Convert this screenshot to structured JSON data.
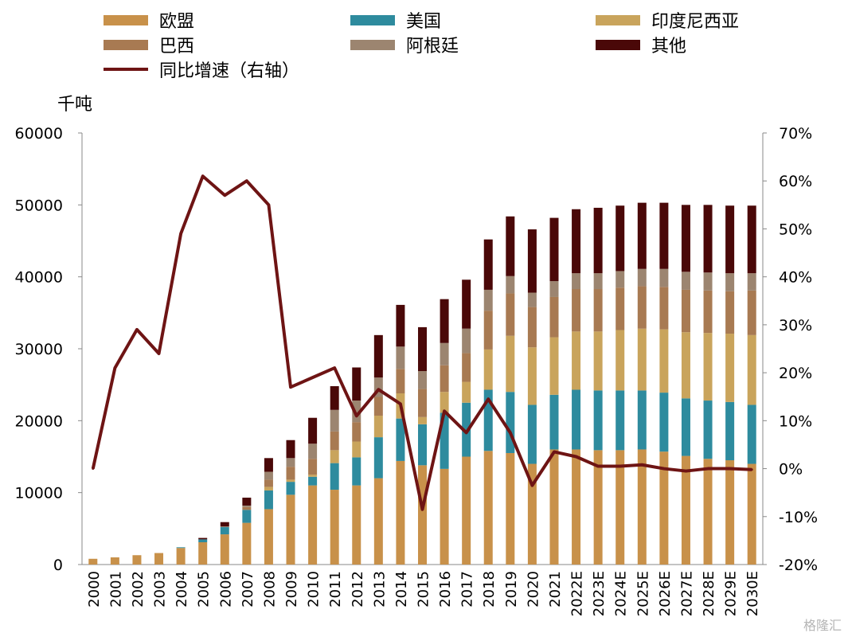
{
  "colors": {
    "eu": "#C8914A",
    "us": "#2E8B9E",
    "india": "#C9A45C",
    "brazil": "#A87A52",
    "argentina": "#9C8570",
    "other": "#4A0808",
    "line": "#6E1414"
  },
  "unit_label": "千吨",
  "watermark": "格隆汇",
  "chart_data": {
    "type": "bar",
    "stacked": true,
    "categories": [
      "2000",
      "2001",
      "2002",
      "2003",
      "2004",
      "2005",
      "2006",
      "2007",
      "2008",
      "2009",
      "2010",
      "2011",
      "2012",
      "2013",
      "2014",
      "2015",
      "2016",
      "2017",
      "2018",
      "2019",
      "2020",
      "2021",
      "2022E",
      "2023E",
      "2024E",
      "2025E",
      "2026E",
      "2027E",
      "2028E",
      "2029E",
      "2030E"
    ],
    "y_left": {
      "ylim": [
        0,
        60000
      ],
      "ticks": [
        "0",
        "10000",
        "20000",
        "30000",
        "40000",
        "50000",
        "60000"
      ]
    },
    "y_right": {
      "ylim": [
        -20,
        70
      ],
      "ticks": [
        "-20%",
        "-10%",
        "0%",
        "10%",
        "20%",
        "30%",
        "40%",
        "50%",
        "60%",
        "70%"
      ]
    },
    "series": [
      {
        "name": "欧盟",
        "color_key": "eu",
        "values": [
          800,
          1000,
          1300,
          1600,
          2300,
          3100,
          4200,
          5800,
          7700,
          9700,
          11000,
          10400,
          11000,
          12000,
          14400,
          13800,
          13300,
          15000,
          15800,
          15500,
          14000,
          16000,
          16000,
          15900,
          15900,
          16000,
          15700,
          15100,
          14700,
          14500,
          14000
        ]
      },
      {
        "name": "美国",
        "color_key": "us",
        "values": [
          0,
          0,
          0,
          0,
          100,
          400,
          1000,
          1800,
          2600,
          1800,
          1200,
          3700,
          3900,
          5700,
          5900,
          5700,
          7800,
          7500,
          8500,
          8500,
          8200,
          7600,
          8300,
          8300,
          8300,
          8200,
          8200,
          8000,
          8100,
          8100,
          8200
        ]
      },
      {
        "name": "印度尼西亚",
        "color_key": "india",
        "values": [
          0,
          0,
          0,
          0,
          0,
          0,
          0,
          0,
          500,
          300,
          300,
          1800,
          2200,
          3000,
          3500,
          1000,
          2900,
          2900,
          5600,
          7800,
          8000,
          8000,
          8100,
          8200,
          8400,
          8600,
          8800,
          9200,
          9400,
          9500,
          9700
        ]
      },
      {
        "name": "巴西",
        "color_key": "brazil",
        "values": [
          0,
          0,
          0,
          0,
          0,
          0,
          0,
          400,
          1000,
          1800,
          2200,
          2600,
          2700,
          2600,
          3400,
          3900,
          3700,
          4000,
          5400,
          5900,
          5600,
          5600,
          5900,
          5900,
          5900,
          5900,
          5900,
          5900,
          5900,
          5900,
          6200
        ]
      },
      {
        "name": "阿根廷",
        "color_key": "argentina",
        "values": [
          0,
          0,
          0,
          0,
          0,
          0,
          100,
          200,
          1100,
          1200,
          2100,
          3000,
          3000,
          2700,
          3100,
          2500,
          3100,
          3400,
          2900,
          2400,
          2000,
          2200,
          2200,
          2200,
          2300,
          2400,
          2500,
          2500,
          2500,
          2500,
          2400
        ]
      },
      {
        "name": "其他",
        "color_key": "other",
        "values": [
          0,
          0,
          0,
          0,
          0,
          200,
          600,
          1100,
          1900,
          2500,
          3600,
          3300,
          4600,
          5900,
          5800,
          6100,
          6100,
          6800,
          7000,
          8300,
          8800,
          8800,
          8900,
          9100,
          9100,
          9200,
          9200,
          9300,
          9400,
          9400,
          9400
        ]
      }
    ],
    "line": {
      "name": "同比增速（右轴）",
      "color_key": "line",
      "unit": "%",
      "values": [
        0,
        21,
        29,
        24,
        49,
        61,
        57,
        60,
        55,
        17,
        19,
        21,
        11,
        16.5,
        13.5,
        -8.5,
        12,
        7.5,
        14.5,
        7.5,
        -3.5,
        3.5,
        2.5,
        0.5,
        0.5,
        0.8,
        0,
        -0.5,
        0,
        0,
        -0.2
      ]
    }
  }
}
